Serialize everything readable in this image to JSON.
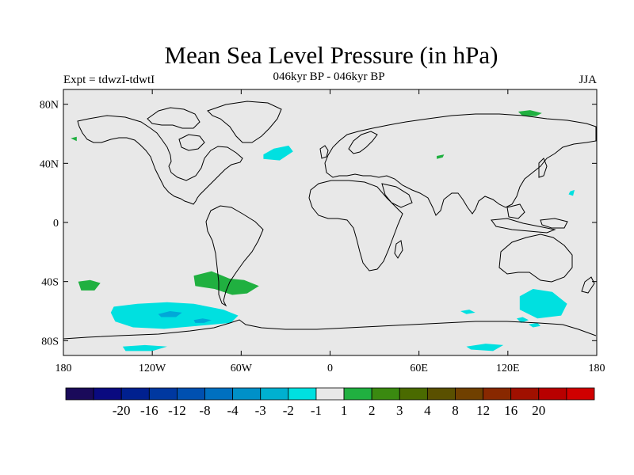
{
  "title": "Mean Sea Level Pressure (in hPa)",
  "subtitle": "046kyr BP - 046kyr BP",
  "expt_label": "Expt = tdwzI-tdwtI",
  "season": "JJA",
  "map": {
    "projection": "cylindrical equidistant",
    "lon_range": [
      -180,
      180
    ],
    "lat_range": [
      -90,
      90
    ],
    "background_color": "#e8e8e8",
    "lat_ticks": [
      {
        "lat": 80,
        "label": "80N"
      },
      {
        "lat": 40,
        "label": "40N"
      },
      {
        "lat": 0,
        "label": "0"
      },
      {
        "lat": -40,
        "label": "40S"
      },
      {
        "lat": -80,
        "label": "80S"
      }
    ],
    "lon_ticks": [
      {
        "lon": -180,
        "label": "180"
      },
      {
        "lon": -120,
        "label": "120W"
      },
      {
        "lon": -60,
        "label": "60W"
      },
      {
        "lon": 0,
        "label": "0"
      },
      {
        "lon": 60,
        "label": "60E"
      },
      {
        "lon": 120,
        "label": "120E"
      },
      {
        "lon": 180,
        "label": "180"
      }
    ],
    "anomaly_regions": [
      {
        "name": "south-pacific-negative-anomaly",
        "color": "#00e0e0",
        "points": [
          [
            -146,
            -57
          ],
          [
            -130,
            -55
          ],
          [
            -110,
            -54
          ],
          [
            -92,
            -55
          ],
          [
            -72,
            -59
          ],
          [
            -62,
            -63
          ],
          [
            -67,
            -68
          ],
          [
            -90,
            -70
          ],
          [
            -112,
            -72
          ],
          [
            -133,
            -71
          ],
          [
            -145,
            -67
          ],
          [
            -148,
            -61
          ]
        ]
      },
      {
        "name": "south-pacific-core-negative-anomaly",
        "color": "#00a8d8",
        "points": [
          [
            -116,
            -62
          ],
          [
            -108,
            -60
          ],
          [
            -100,
            -61
          ],
          [
            -104,
            -64
          ],
          [
            -114,
            -64
          ]
        ]
      },
      {
        "name": "south-pacific-core2-negative-anomaly",
        "color": "#00a8d8",
        "points": [
          [
            -92,
            -66
          ],
          [
            -86,
            -65
          ],
          [
            -80,
            -66
          ],
          [
            -85,
            -68
          ],
          [
            -91,
            -68
          ]
        ]
      },
      {
        "name": "ross-sea-negative-anomaly",
        "color": "#00e0e0",
        "points": [
          [
            -140,
            -84
          ],
          [
            -125,
            -83
          ],
          [
            -110,
            -84
          ],
          [
            -120,
            -87
          ],
          [
            -138,
            -87
          ]
        ]
      },
      {
        "name": "north-atlantic-negative-anomaly",
        "color": "#00e0e0",
        "points": [
          [
            -45,
            46
          ],
          [
            -38,
            50
          ],
          [
            -28,
            52
          ],
          [
            -25,
            48
          ],
          [
            -34,
            42
          ],
          [
            -45,
            43
          ]
        ]
      },
      {
        "name": "australian-south-negative-anomaly",
        "color": "#00e0e0",
        "points": [
          [
            128,
            -50
          ],
          [
            137,
            -45
          ],
          [
            150,
            -47
          ],
          [
            160,
            -55
          ],
          [
            156,
            -63
          ],
          [
            140,
            -65
          ],
          [
            128,
            -59
          ]
        ]
      },
      {
        "name": "south-indian-negative-anomaly",
        "color": "#00e0e0",
        "points": [
          [
            88,
            -60
          ],
          [
            94,
            -59
          ],
          [
            98,
            -61
          ],
          [
            92,
            -62
          ]
        ]
      },
      {
        "name": "tasman-small-negative-anomaly-1",
        "color": "#00e0e0",
        "points": [
          [
            126,
            -65
          ],
          [
            130,
            -64
          ],
          [
            134,
            -66
          ],
          [
            129,
            -68
          ]
        ]
      },
      {
        "name": "tasman-small-negative-anomaly-2",
        "color": "#00e0e0",
        "points": [
          [
            134,
            -69
          ],
          [
            140,
            -68
          ],
          [
            142,
            -70
          ],
          [
            137,
            -71
          ]
        ]
      },
      {
        "name": "antarctic-indian-negative-anomaly",
        "color": "#00e0e0",
        "points": [
          [
            92,
            -84
          ],
          [
            105,
            -82
          ],
          [
            117,
            -83
          ],
          [
            110,
            -87
          ],
          [
            95,
            -86
          ]
        ]
      },
      {
        "name": "pacific-east-negative-anomaly",
        "color": "#00e0e0",
        "points": [
          [
            162,
            21
          ],
          [
            165,
            22
          ],
          [
            164,
            18
          ],
          [
            161,
            19
          ]
        ]
      },
      {
        "name": "south-pacific-positive-anomaly",
        "color": "#20b040",
        "points": [
          [
            -170,
            -40
          ],
          [
            -162,
            -39
          ],
          [
            -155,
            -41
          ],
          [
            -159,
            -46
          ],
          [
            -168,
            -46
          ]
        ]
      },
      {
        "name": "south-america-positive-anomaly",
        "color": "#20b040",
        "points": [
          [
            -92,
            -36
          ],
          [
            -80,
            -33
          ],
          [
            -68,
            -38
          ],
          [
            -58,
            -39
          ],
          [
            -48,
            -43
          ],
          [
            -56,
            -48
          ],
          [
            -66,
            -49
          ],
          [
            -78,
            -45
          ],
          [
            -91,
            -43
          ]
        ]
      },
      {
        "name": "siberia-positive-anomaly",
        "color": "#20b040",
        "points": [
          [
            127,
            75
          ],
          [
            135,
            76
          ],
          [
            143,
            74
          ],
          [
            139,
            72
          ],
          [
            130,
            72
          ]
        ]
      },
      {
        "name": "central-asia-positive-anomaly",
        "color": "#20b040",
        "points": [
          [
            72,
            45
          ],
          [
            77,
            46
          ],
          [
            76,
            44
          ],
          [
            72,
            43
          ]
        ]
      },
      {
        "name": "alaska-positive-anomaly",
        "color": "#20b040",
        "points": [
          [
            -175,
            57
          ],
          [
            -171,
            58
          ],
          [
            -171,
            55
          ]
        ]
      }
    ]
  },
  "colorbar": {
    "colors": [
      "#1a0a5a",
      "#0a0a80",
      "#00208f",
      "#0038a0",
      "#0050b0",
      "#0070c0",
      "#0090c8",
      "#00b0d0",
      "#00e0e0",
      "#e8e8e8",
      "#20b040",
      "#3a8a10",
      "#4a6a00",
      "#5a5000",
      "#704000",
      "#882800",
      "#a01000",
      "#b80000",
      "#d00000"
    ],
    "labels": [
      "-20",
      "-16",
      "-12",
      "-8",
      "-4",
      "-3",
      "-2",
      "-1",
      "1",
      "2",
      "3",
      "4",
      "8",
      "12",
      "16",
      "20"
    ]
  }
}
